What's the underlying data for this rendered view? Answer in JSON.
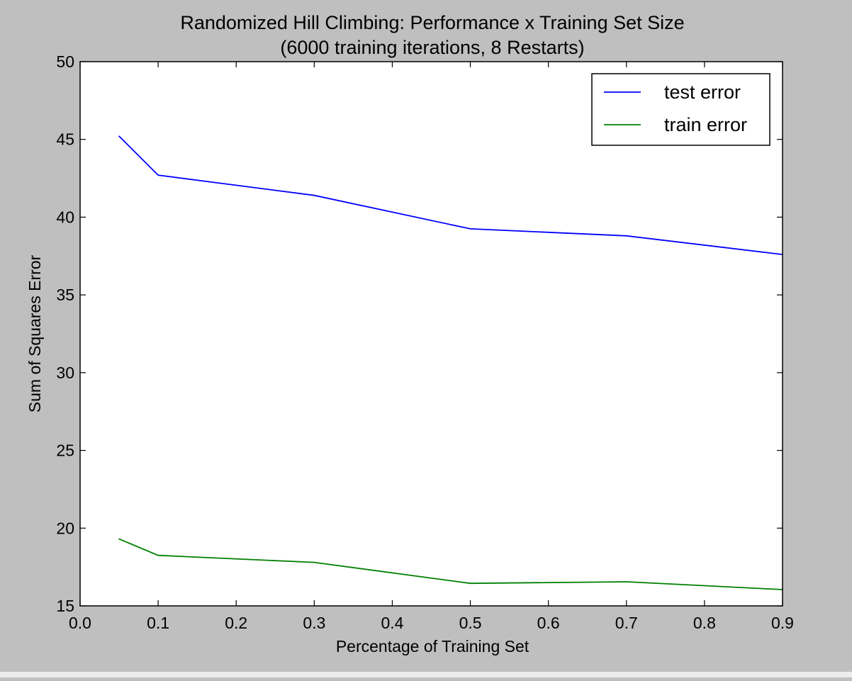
{
  "chart_data": {
    "type": "line",
    "title": "Randomized Hill Climbing: Performance x Training Set Size",
    "subtitle": "(6000 training iterations, 8 Restarts)",
    "xlabel": "Percentage of Training Set",
    "ylabel": "Sum of Squares Error",
    "xlim": [
      0.0,
      0.9
    ],
    "ylim": [
      15,
      50
    ],
    "xticks": [
      "0.0",
      "0.1",
      "0.2",
      "0.3",
      "0.4",
      "0.5",
      "0.6",
      "0.7",
      "0.8",
      "0.9"
    ],
    "yticks": [
      "15",
      "20",
      "25",
      "30",
      "35",
      "40",
      "45",
      "50"
    ],
    "x": [
      0.05,
      0.1,
      0.3,
      0.5,
      0.7,
      0.9
    ],
    "series": [
      {
        "name": "test error",
        "color": "#0000ff",
        "values": [
          45.2,
          42.7,
          41.4,
          39.25,
          38.8,
          37.6
        ]
      },
      {
        "name": "train error",
        "color": "#008000",
        "values": [
          19.3,
          18.25,
          17.8,
          16.45,
          16.55,
          16.05
        ]
      }
    ],
    "grid": false,
    "legend_position": "top-right"
  }
}
